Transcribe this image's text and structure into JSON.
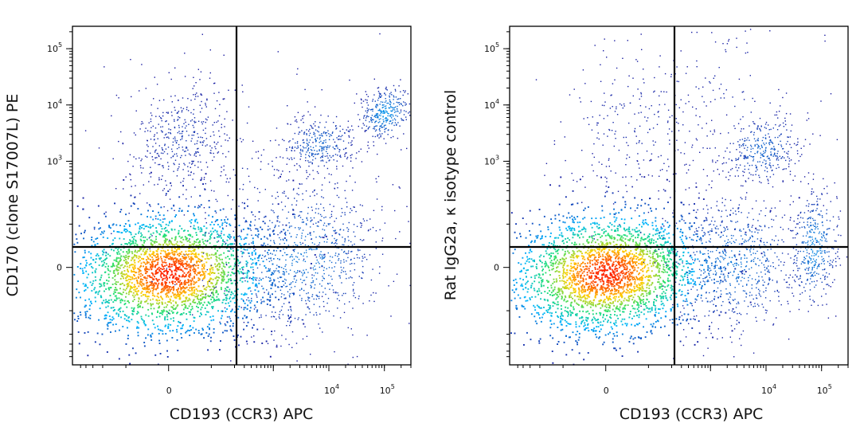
{
  "chart_data": [
    {
      "type": "scatter",
      "subtype": "flow-cytometry density dot plot (pseudocolor)",
      "xlabel": "CD193 (CCR3) APC",
      "ylabel": "CD170 (clone S17007L) PE",
      "x_scale": "biexponential",
      "y_scale": "biexponential",
      "x_ticks": [
        {
          "base": "0",
          "exp": ""
        },
        {
          "base": "10",
          "exp": "4"
        },
        {
          "base": "10",
          "exp": "5"
        }
      ],
      "y_ticks": [
        {
          "base": "0",
          "exp": ""
        },
        {
          "base": "10",
          "exp": "3"
        },
        {
          "base": "10",
          "exp": "4"
        },
        {
          "base": "10",
          "exp": "5"
        }
      ],
      "quadrant_gate": {
        "x": 2500,
        "y": 500
      },
      "color_scale": [
        "#1a1aa0",
        "#00b4ff",
        "#22e070",
        "#ffd000",
        "#ff2000"
      ],
      "populations": [
        {
          "label": "double-negative main population",
          "center": [
            0,
            0
          ],
          "density": "high"
        },
        {
          "label": "CD193+ CD170+ population",
          "center": [
            60000,
            9000
          ],
          "density": "medium"
        },
        {
          "label": "CD193+ CD170 intermediate population",
          "center": [
            9000,
            900
          ],
          "density": "medium"
        },
        {
          "label": "CD193- CD170+ population",
          "center": [
            0,
            1500
          ],
          "density": "low"
        }
      ]
    },
    {
      "type": "scatter",
      "subtype": "flow-cytometry density dot plot (pseudocolor)",
      "xlabel": "CD193 (CCR3) APC",
      "ylabel": "Rat IgG2a, κ isotype control",
      "x_scale": "biexponential",
      "y_scale": "biexponential",
      "x_ticks": [
        {
          "base": "0",
          "exp": ""
        },
        {
          "base": "10",
          "exp": "4"
        },
        {
          "base": "10",
          "exp": "5"
        }
      ],
      "y_ticks": [
        {
          "base": "0",
          "exp": ""
        },
        {
          "base": "10",
          "exp": "3"
        },
        {
          "base": "10",
          "exp": "4"
        },
        {
          "base": "10",
          "exp": "5"
        }
      ],
      "quadrant_gate": {
        "x": 2500,
        "y": 500
      },
      "color_scale": [
        "#1a1aa0",
        "#00b4ff",
        "#22e070",
        "#ffd000",
        "#ff2000"
      ],
      "populations": [
        {
          "label": "double-negative main population",
          "center": [
            0,
            0
          ],
          "density": "high"
        },
        {
          "label": "CD193+ CD170 negative population",
          "center": [
            50000,
            0
          ],
          "density": "medium"
        },
        {
          "label": "CD193+ low-positive population",
          "center": [
            8000,
            800
          ],
          "density": "medium"
        },
        {
          "label": "CD193- sparse positive events",
          "center": [
            0,
            2500
          ],
          "density": "low"
        }
      ]
    }
  ]
}
